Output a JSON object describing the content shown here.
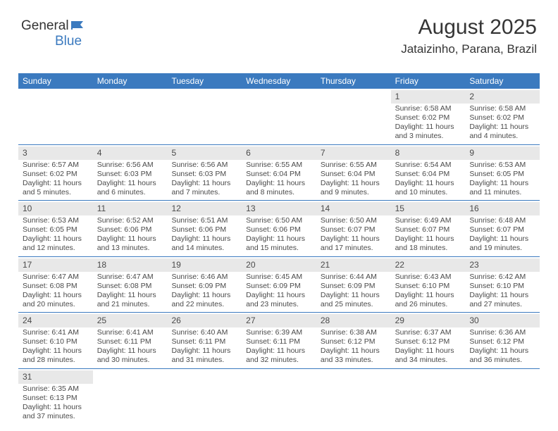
{
  "logo": {
    "text1": "General",
    "text2": "Blue",
    "brand_color": "#3b7abf"
  },
  "title": "August 2025",
  "location": "Jataizinho, Parana, Brazil",
  "colors": {
    "header_bg": "#3b7abf",
    "header_fg": "#ffffff",
    "daynum_bg": "#e8e8e8",
    "text": "#4a4a4a",
    "divider": "#3b7abf",
    "page_bg": "#ffffff"
  },
  "styling": {
    "cell_fontsize": 10.5,
    "header_fontsize": 12,
    "daynum_fontsize": 12,
    "title_fontsize": 30,
    "location_fontsize": 17
  },
  "day_headers": [
    "Sunday",
    "Monday",
    "Tuesday",
    "Wednesday",
    "Thursday",
    "Friday",
    "Saturday"
  ],
  "weeks": [
    [
      null,
      null,
      null,
      null,
      null,
      {
        "n": "1",
        "sunrise": "Sunrise: 6:58 AM",
        "sunset": "Sunset: 6:02 PM",
        "daylight": "Daylight: 11 hours and 3 minutes."
      },
      {
        "n": "2",
        "sunrise": "Sunrise: 6:58 AM",
        "sunset": "Sunset: 6:02 PM",
        "daylight": "Daylight: 11 hours and 4 minutes."
      }
    ],
    [
      {
        "n": "3",
        "sunrise": "Sunrise: 6:57 AM",
        "sunset": "Sunset: 6:02 PM",
        "daylight": "Daylight: 11 hours and 5 minutes."
      },
      {
        "n": "4",
        "sunrise": "Sunrise: 6:56 AM",
        "sunset": "Sunset: 6:03 PM",
        "daylight": "Daylight: 11 hours and 6 minutes."
      },
      {
        "n": "5",
        "sunrise": "Sunrise: 6:56 AM",
        "sunset": "Sunset: 6:03 PM",
        "daylight": "Daylight: 11 hours and 7 minutes."
      },
      {
        "n": "6",
        "sunrise": "Sunrise: 6:55 AM",
        "sunset": "Sunset: 6:04 PM",
        "daylight": "Daylight: 11 hours and 8 minutes."
      },
      {
        "n": "7",
        "sunrise": "Sunrise: 6:55 AM",
        "sunset": "Sunset: 6:04 PM",
        "daylight": "Daylight: 11 hours and 9 minutes."
      },
      {
        "n": "8",
        "sunrise": "Sunrise: 6:54 AM",
        "sunset": "Sunset: 6:04 PM",
        "daylight": "Daylight: 11 hours and 10 minutes."
      },
      {
        "n": "9",
        "sunrise": "Sunrise: 6:53 AM",
        "sunset": "Sunset: 6:05 PM",
        "daylight": "Daylight: 11 hours and 11 minutes."
      }
    ],
    [
      {
        "n": "10",
        "sunrise": "Sunrise: 6:53 AM",
        "sunset": "Sunset: 6:05 PM",
        "daylight": "Daylight: 11 hours and 12 minutes."
      },
      {
        "n": "11",
        "sunrise": "Sunrise: 6:52 AM",
        "sunset": "Sunset: 6:06 PM",
        "daylight": "Daylight: 11 hours and 13 minutes."
      },
      {
        "n": "12",
        "sunrise": "Sunrise: 6:51 AM",
        "sunset": "Sunset: 6:06 PM",
        "daylight": "Daylight: 11 hours and 14 minutes."
      },
      {
        "n": "13",
        "sunrise": "Sunrise: 6:50 AM",
        "sunset": "Sunset: 6:06 PM",
        "daylight": "Daylight: 11 hours and 15 minutes."
      },
      {
        "n": "14",
        "sunrise": "Sunrise: 6:50 AM",
        "sunset": "Sunset: 6:07 PM",
        "daylight": "Daylight: 11 hours and 17 minutes."
      },
      {
        "n": "15",
        "sunrise": "Sunrise: 6:49 AM",
        "sunset": "Sunset: 6:07 PM",
        "daylight": "Daylight: 11 hours and 18 minutes."
      },
      {
        "n": "16",
        "sunrise": "Sunrise: 6:48 AM",
        "sunset": "Sunset: 6:07 PM",
        "daylight": "Daylight: 11 hours and 19 minutes."
      }
    ],
    [
      {
        "n": "17",
        "sunrise": "Sunrise: 6:47 AM",
        "sunset": "Sunset: 6:08 PM",
        "daylight": "Daylight: 11 hours and 20 minutes."
      },
      {
        "n": "18",
        "sunrise": "Sunrise: 6:47 AM",
        "sunset": "Sunset: 6:08 PM",
        "daylight": "Daylight: 11 hours and 21 minutes."
      },
      {
        "n": "19",
        "sunrise": "Sunrise: 6:46 AM",
        "sunset": "Sunset: 6:09 PM",
        "daylight": "Daylight: 11 hours and 22 minutes."
      },
      {
        "n": "20",
        "sunrise": "Sunrise: 6:45 AM",
        "sunset": "Sunset: 6:09 PM",
        "daylight": "Daylight: 11 hours and 23 minutes."
      },
      {
        "n": "21",
        "sunrise": "Sunrise: 6:44 AM",
        "sunset": "Sunset: 6:09 PM",
        "daylight": "Daylight: 11 hours and 25 minutes."
      },
      {
        "n": "22",
        "sunrise": "Sunrise: 6:43 AM",
        "sunset": "Sunset: 6:10 PM",
        "daylight": "Daylight: 11 hours and 26 minutes."
      },
      {
        "n": "23",
        "sunrise": "Sunrise: 6:42 AM",
        "sunset": "Sunset: 6:10 PM",
        "daylight": "Daylight: 11 hours and 27 minutes."
      }
    ],
    [
      {
        "n": "24",
        "sunrise": "Sunrise: 6:41 AM",
        "sunset": "Sunset: 6:10 PM",
        "daylight": "Daylight: 11 hours and 28 minutes."
      },
      {
        "n": "25",
        "sunrise": "Sunrise: 6:41 AM",
        "sunset": "Sunset: 6:11 PM",
        "daylight": "Daylight: 11 hours and 30 minutes."
      },
      {
        "n": "26",
        "sunrise": "Sunrise: 6:40 AM",
        "sunset": "Sunset: 6:11 PM",
        "daylight": "Daylight: 11 hours and 31 minutes."
      },
      {
        "n": "27",
        "sunrise": "Sunrise: 6:39 AM",
        "sunset": "Sunset: 6:11 PM",
        "daylight": "Daylight: 11 hours and 32 minutes."
      },
      {
        "n": "28",
        "sunrise": "Sunrise: 6:38 AM",
        "sunset": "Sunset: 6:12 PM",
        "daylight": "Daylight: 11 hours and 33 minutes."
      },
      {
        "n": "29",
        "sunrise": "Sunrise: 6:37 AM",
        "sunset": "Sunset: 6:12 PM",
        "daylight": "Daylight: 11 hours and 34 minutes."
      },
      {
        "n": "30",
        "sunrise": "Sunrise: 6:36 AM",
        "sunset": "Sunset: 6:12 PM",
        "daylight": "Daylight: 11 hours and 36 minutes."
      }
    ],
    [
      {
        "n": "31",
        "sunrise": "Sunrise: 6:35 AM",
        "sunset": "Sunset: 6:13 PM",
        "daylight": "Daylight: 11 hours and 37 minutes."
      },
      null,
      null,
      null,
      null,
      null,
      null
    ]
  ]
}
